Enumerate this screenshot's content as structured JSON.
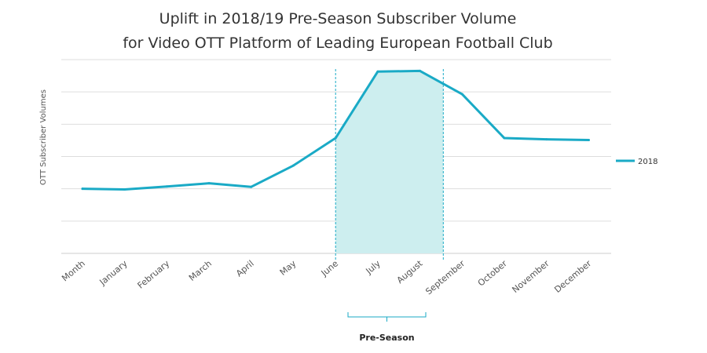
{
  "chart_data": {
    "type": "line",
    "title": [
      "Uplift in 2018/19 Pre-Season Subscriber Volume",
      "for Video OTT Platform of Leading European Football Club"
    ],
    "xlabel": "",
    "ylabel": "OTT Subscriber Volumes",
    "categories": [
      "Month",
      "January",
      "February",
      "March",
      "April",
      "May",
      "June",
      "July",
      "August",
      "September",
      "October",
      "November",
      "December"
    ],
    "series": [
      {
        "name": "2018",
        "color": "#1aaac6",
        "values": [
          2.0,
          1.98,
          2.07,
          2.17,
          2.06,
          2.72,
          3.57,
          5.63,
          5.65,
          4.93,
          3.57,
          3.53,
          3.51
        ]
      }
    ],
    "ylim": [
      0,
      6
    ],
    "y_ticks_shown": false,
    "grid": true,
    "legend": "right",
    "highlight": {
      "label": "Pre-Season",
      "from_category": "June",
      "to_category": "September",
      "fill_color": "#cdeeef",
      "line_color": "#1aaac6"
    }
  }
}
